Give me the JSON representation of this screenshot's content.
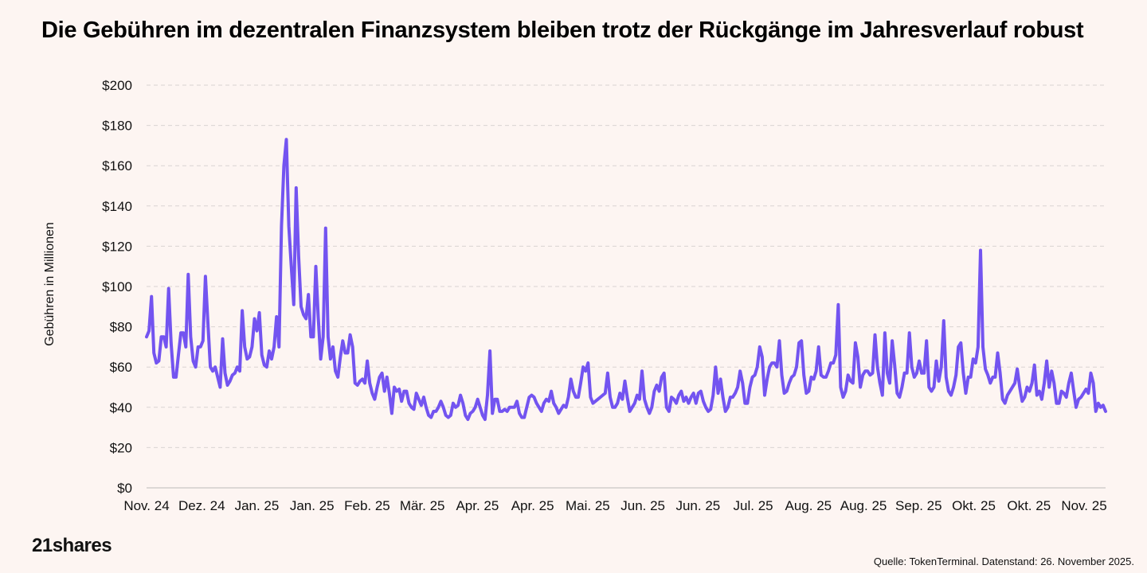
{
  "chart_data": {
    "type": "line",
    "title": "Die Gebühren im dezentralen Finanzsystem bleiben trotz der Rückgänge im Jahresverlauf robust",
    "ylabel": "Gebühren in Millionen",
    "xlabel": "",
    "ylim": [
      0,
      200
    ],
    "y_ticks": [
      "$0",
      "$20",
      "$40",
      "$60",
      "$80",
      "$100",
      "$120",
      "$140",
      "$160",
      "$180",
      "$200"
    ],
    "x_ticks": [
      "Nov. 24",
      "Dez. 24",
      "Jan. 25",
      "Jan. 25",
      "Feb. 25",
      "Mär. 25",
      "Apr. 25",
      "Apr. 25",
      "Mai. 25",
      "Jun. 25",
      "Jun. 25",
      "Jul. 25",
      "Aug. 25",
      "Aug. 25",
      "Sep. 25",
      "Okt. 25",
      "Okt. 25",
      "Nov. 25"
    ],
    "grid": true,
    "color": "#7354f0",
    "series": [
      {
        "values": [
          75,
          78,
          95,
          67,
          62,
          63,
          75,
          75,
          70,
          99,
          72,
          55,
          55,
          66,
          77,
          77,
          70,
          106,
          75,
          63,
          60,
          70,
          70,
          73,
          105,
          82,
          60,
          58,
          60,
          55,
          50,
          74,
          57,
          51,
          53,
          56,
          57,
          60,
          58,
          88,
          70,
          64,
          65,
          70,
          84,
          78,
          87,
          66,
          61,
          60,
          68,
          64,
          70,
          85,
          70,
          130,
          160,
          173,
          130,
          110,
          91,
          149,
          115,
          90,
          86,
          84,
          96,
          75,
          75,
          110,
          85,
          64,
          75,
          129,
          75,
          64,
          70,
          58,
          55,
          65,
          73,
          67,
          67,
          76,
          70,
          52,
          51,
          53,
          54,
          52,
          63,
          52,
          47,
          44,
          50,
          55,
          57,
          48,
          55,
          47,
          37,
          50,
          48,
          49,
          43,
          48,
          48,
          42,
          40,
          39,
          47,
          44,
          41,
          45,
          40,
          36,
          35,
          38,
          38,
          40,
          43,
          40,
          36,
          35,
          36,
          42,
          40,
          41,
          46,
          42,
          36,
          34,
          37,
          38,
          40,
          44,
          40,
          36,
          34,
          46,
          68,
          37,
          44,
          44,
          38,
          38,
          39,
          38,
          40,
          40,
          40,
          43,
          37,
          35,
          35,
          40,
          45,
          46,
          45,
          42,
          40,
          38,
          42,
          44,
          43,
          48,
          42,
          40,
          37,
          39,
          41,
          40,
          45,
          54,
          48,
          45,
          45,
          52,
          60,
          58,
          62,
          45,
          42,
          43,
          44,
          45,
          46,
          47,
          57,
          45,
          40,
          40,
          42,
          47,
          44,
          53,
          45,
          38,
          40,
          42,
          46,
          44,
          58,
          44,
          40,
          37,
          40,
          48,
          51,
          48,
          55,
          57,
          40,
          38,
          45,
          44,
          42,
          46,
          48,
          43,
          45,
          42,
          45,
          47,
          42,
          47,
          48,
          43,
          40,
          38,
          39,
          46,
          60,
          47,
          54,
          45,
          38,
          40,
          45,
          45,
          47,
          50,
          58,
          52,
          42,
          42,
          50,
          55,
          56,
          60,
          70,
          65,
          46,
          54,
          60,
          62,
          62,
          60,
          73,
          56,
          47,
          48,
          52,
          55,
          56,
          60,
          72,
          73,
          56,
          47,
          48,
          55,
          54,
          58,
          70,
          56,
          55,
          55,
          58,
          62,
          62,
          66,
          91,
          50,
          45,
          48,
          56,
          53,
          52,
          72,
          65,
          50,
          56,
          58,
          58,
          56,
          57,
          76,
          60,
          52,
          46,
          77,
          57,
          52,
          73,
          61,
          47,
          45,
          50,
          57,
          57,
          77,
          60,
          55,
          57,
          63,
          57,
          57,
          73,
          50,
          48,
          50,
          63,
          53,
          60,
          83,
          55,
          48,
          46,
          50,
          56,
          70,
          72,
          57,
          47,
          55,
          55,
          64,
          62,
          70,
          118,
          70,
          59,
          56,
          52,
          55,
          55,
          67,
          57,
          44,
          42,
          46,
          48,
          50,
          52,
          59,
          50,
          43,
          45,
          50,
          48,
          52,
          61,
          46,
          48,
          44,
          52,
          63,
          50,
          58,
          52,
          42,
          42,
          48,
          47,
          45,
          52,
          57,
          48,
          40,
          44,
          45,
          47,
          49,
          47,
          57,
          52,
          38,
          42,
          40,
          41,
          38
        ]
      }
    ]
  },
  "footer": {
    "logo": "21shares",
    "source": "Quelle: TokenTerminal. Datenstand: 26. November 2025."
  }
}
